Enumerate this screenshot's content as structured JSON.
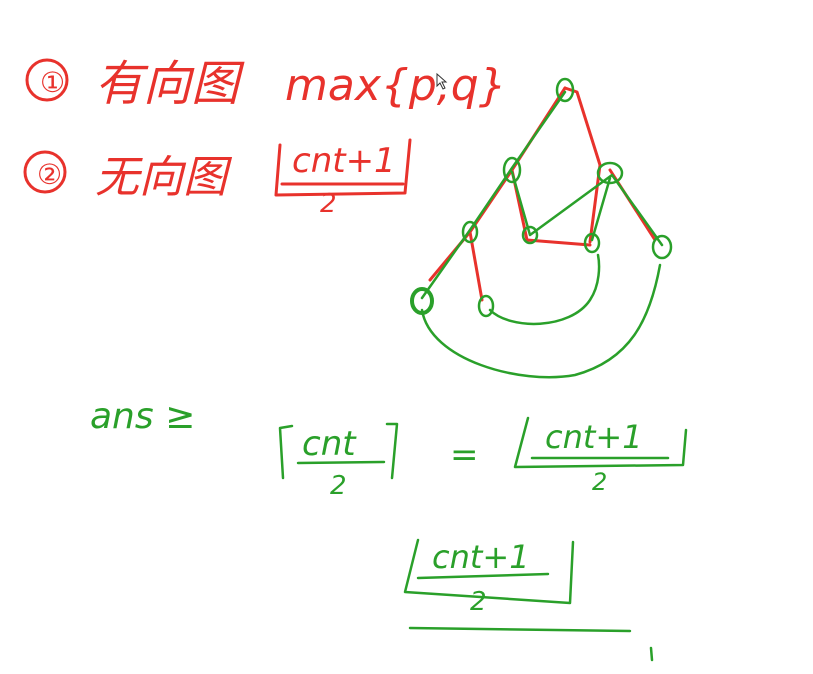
{
  "notes": {
    "line1": {
      "index": "①",
      "text": "有向图",
      "formula": "max{p,q}"
    },
    "line2": {
      "index": "②",
      "text": "无向图",
      "numerator": "cnt+1",
      "denominator": "2"
    },
    "bound": {
      "lhs": "ans ≥",
      "ceil_numerator": "cnt",
      "ceil_denominator": "2",
      "equals": "=",
      "floor_numerator": "cnt+1",
      "floor_denominator": "2"
    },
    "bottom": {
      "numerator": "cnt+1",
      "denominator": "2"
    }
  },
  "colors": {
    "red_ink": "#e8322c",
    "green_ink": "#2aa02a",
    "background": "#ffffff"
  },
  "icons": {
    "cursor": "mouse-pointer-icon"
  }
}
